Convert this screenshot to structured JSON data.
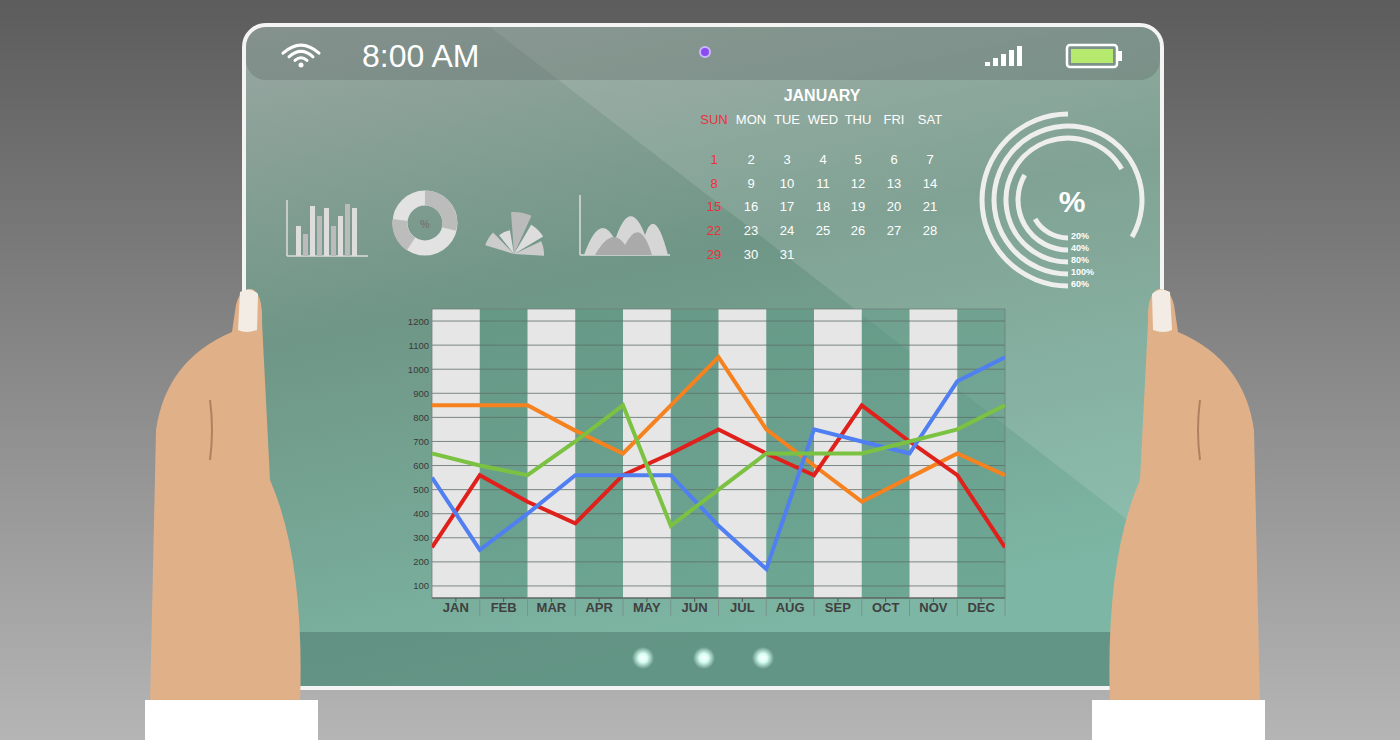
{
  "status_bar": {
    "time": "8:00 AM"
  },
  "icons": {
    "donut_label": "%"
  },
  "calendar": {
    "month": "JANUARY",
    "weekdays": [
      "SUN",
      "MON",
      "TUE",
      "WED",
      "THU",
      "FRI",
      "SAT"
    ],
    "weeks": [
      [
        1,
        2,
        3,
        4,
        5,
        6,
        7
      ],
      [
        8,
        9,
        10,
        11,
        12,
        13,
        14
      ],
      [
        15,
        16,
        17,
        18,
        19,
        20,
        21
      ],
      [
        22,
        23,
        24,
        25,
        26,
        27,
        28
      ],
      [
        29,
        30,
        31
      ]
    ]
  },
  "gauge": {
    "symbol": "%",
    "rings": [
      {
        "value": 20,
        "label": "20%"
      },
      {
        "value": 40,
        "label": "40%"
      },
      {
        "value": 80,
        "label": "80%"
      },
      {
        "value": 100,
        "label": "100%"
      },
      {
        "value": 60,
        "label": "60%"
      }
    ]
  },
  "chart_data": {
    "type": "line",
    "x": [
      0,
      1,
      2,
      3,
      4,
      5,
      6,
      7,
      8,
      9,
      10,
      11,
      12
    ],
    "xlim": [
      0,
      12
    ],
    "xticks": [
      {
        "value": 0.5,
        "label": "JAN"
      },
      {
        "value": 1.5,
        "label": "FEB"
      },
      {
        "value": 2.5,
        "label": "MAR"
      },
      {
        "value": 3.5,
        "label": "APR"
      },
      {
        "value": 4.5,
        "label": "MAY"
      },
      {
        "value": 5.5,
        "label": "JUN"
      },
      {
        "value": 6.5,
        "label": "JUL"
      },
      {
        "value": 7.5,
        "label": "AUG"
      },
      {
        "value": 8.5,
        "label": "SEP"
      },
      {
        "value": 9.5,
        "label": "OCT"
      },
      {
        "value": 10.5,
        "label": "NOV"
      },
      {
        "value": 11.5,
        "label": "DEC"
      }
    ],
    "ylim": [
      50,
      1250
    ],
    "yticks": [
      100,
      200,
      300,
      400,
      500,
      600,
      700,
      800,
      900,
      1000,
      1100,
      1200
    ],
    "grid": true,
    "series": [
      {
        "color": "#f5821f",
        "values": [
          850,
          850,
          850,
          745,
          650,
          850,
          1050,
          750,
          600,
          450,
          550,
          650,
          560
        ]
      },
      {
        "color": "#e0201b",
        "values": [
          260,
          560,
          450,
          360,
          560,
          650,
          750,
          650,
          560,
          850,
          700,
          560,
          260
        ]
      },
      {
        "color": "#4f7ff0",
        "values": [
          550,
          250,
          400,
          560,
          560,
          560,
          350,
          170,
          750,
          700,
          650,
          950,
          1050
        ]
      },
      {
        "color": "#7cc242",
        "values": [
          650,
          600,
          560,
          700,
          850,
          350,
          500,
          650,
          650,
          650,
          700,
          750,
          850
        ]
      }
    ]
  }
}
